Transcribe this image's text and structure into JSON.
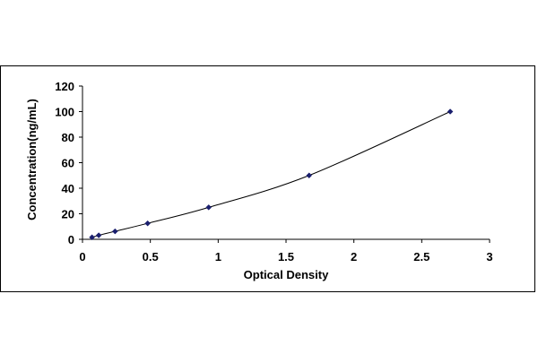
{
  "chart_data": {
    "type": "scatter",
    "title": "",
    "xlabel": "Optical Density",
    "ylabel": "Concentration(ng/mL)",
    "xlim": [
      0,
      3
    ],
    "ylim": [
      0,
      120
    ],
    "xticks": [
      0,
      0.5,
      1,
      1.5,
      2,
      2.5,
      3
    ],
    "xtick_labels": [
      "0",
      "0.5",
      "1",
      "1.5",
      "2",
      "2.5",
      "3"
    ],
    "yticks": [
      0,
      20,
      40,
      60,
      80,
      100,
      120
    ],
    "ytick_labels": [
      "0",
      "20",
      "40",
      "60",
      "80",
      "100",
      "120"
    ],
    "grid": false,
    "legend": "none",
    "series": [
      {
        "x": [
          0.07,
          0.12,
          0.24,
          0.48,
          0.93,
          1.67,
          2.71
        ],
        "y": [
          1.56,
          3.12,
          6.25,
          12.5,
          25,
          50,
          100
        ],
        "marker": "diamond",
        "trendline": "smooth-curve"
      }
    ],
    "colors": {
      "marker": "#1a1f6e",
      "line": "#000000",
      "axis": "#000000",
      "frame": "#000000"
    }
  }
}
